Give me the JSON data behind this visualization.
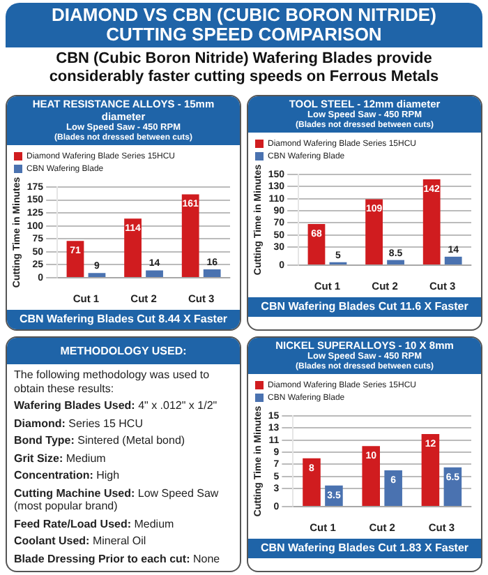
{
  "chart_data": [
    {
      "type": "other",
      "title": "DIAMOND VS CBN (CUBIC BORON NITRIDE) CUTTING SPEED COMPARISON",
      "subtitle": "CBN (Cubic Boron Nitride) Wafering Blades provide considerably faster cutting speeds on Ferrous Metals"
    },
    {
      "type": "bar",
      "title": "HEAT RESISTANCE ALLOYS - 15mm diameter",
      "subtitle": "Low Speed Saw - 450 RPM",
      "annotations": [
        "(Blades not dressed between cuts)",
        "CBN Wafering Blades Cut 8.44 X Faster"
      ],
      "ylabel": "Cutting Time in Minutes",
      "categories": [
        "Cut 1",
        "Cut 2",
        "Cut 3"
      ],
      "series": [
        {
          "name": "Diamond Wafering Blade Series 15HCU",
          "color": "#d01c1f",
          "values": [
            71,
            114,
            161
          ]
        },
        {
          "name": "CBN Wafering Blade",
          "color": "#4a72b0",
          "values": [
            9,
            14,
            16
          ]
        }
      ],
      "ylim": [
        0,
        175
      ],
      "yticks": [
        0,
        25,
        50,
        75,
        100,
        125,
        150,
        175
      ],
      "grid": "y",
      "legend": "top",
      "data_labels": true
    },
    {
      "type": "bar",
      "title": "TOOL STEEL - 12mm diameter",
      "subtitle": "Low Speed Saw - 450 RPM",
      "annotations": [
        "(Blades not dressed between cuts)",
        "CBN Wafering Blades Cut 11.6 X Faster"
      ],
      "ylabel": "Cutting Time in Minutes",
      "categories": [
        "Cut 1",
        "Cut 2",
        "Cut 3"
      ],
      "series": [
        {
          "name": "Diamond Wafering Blade Series 15HCU",
          "color": "#d01c1f",
          "values": [
            68,
            109,
            142
          ]
        },
        {
          "name": "CBN Wafering Blade",
          "color": "#4a72b0",
          "values": [
            5,
            8.5,
            14
          ]
        }
      ],
      "ylim": [
        0,
        150
      ],
      "yticks": [
        0,
        30,
        50,
        70,
        90,
        110,
        130,
        150
      ],
      "grid": "y",
      "legend": "top",
      "data_labels": true
    },
    {
      "type": "other",
      "title": "METHODOLOGY USED:",
      "annotations": [
        "The following methodology was used to obtain these results:",
        "Wafering Blades Used: 4\" x .012\" x 1/2\"",
        "Diamond: Series 15 HCU",
        "Bond Type: Sintered (Metal bond)",
        "Grit Size: Medium",
        "Concentration: High",
        "Cutting Machine Used: Low Speed Saw (most popular brand)",
        "Feed Rate/Load Used: Medium",
        "Coolant Used: Mineral Oil",
        "Blade Dressing Prior to each cut: None"
      ]
    },
    {
      "type": "bar",
      "title": "NICKEL SUPERALLOYS - 10 X 8mm",
      "subtitle": "Low Speed Saw - 450 RPM",
      "annotations": [
        "(Blades not dressed between cuts)",
        "CBN Wafering Blades Cut 1.83 X Faster"
      ],
      "ylabel": "Cutting Time in Minutes",
      "categories": [
        "Cut 1",
        "Cut 2",
        "Cut 3"
      ],
      "series": [
        {
          "name": "Diamond Wafering Blade Series 15HCU",
          "color": "#d01c1f",
          "values": [
            8,
            10,
            12
          ]
        },
        {
          "name": "CBN Wafering Blade",
          "color": "#4a72b0",
          "values": [
            3.5,
            6,
            6.5
          ]
        }
      ],
      "ylim": [
        0,
        15
      ],
      "yticks": [
        0,
        3,
        5,
        7,
        9,
        11,
        13,
        15
      ],
      "grid": "y",
      "legend": "top",
      "data_labels": true
    }
  ]
}
